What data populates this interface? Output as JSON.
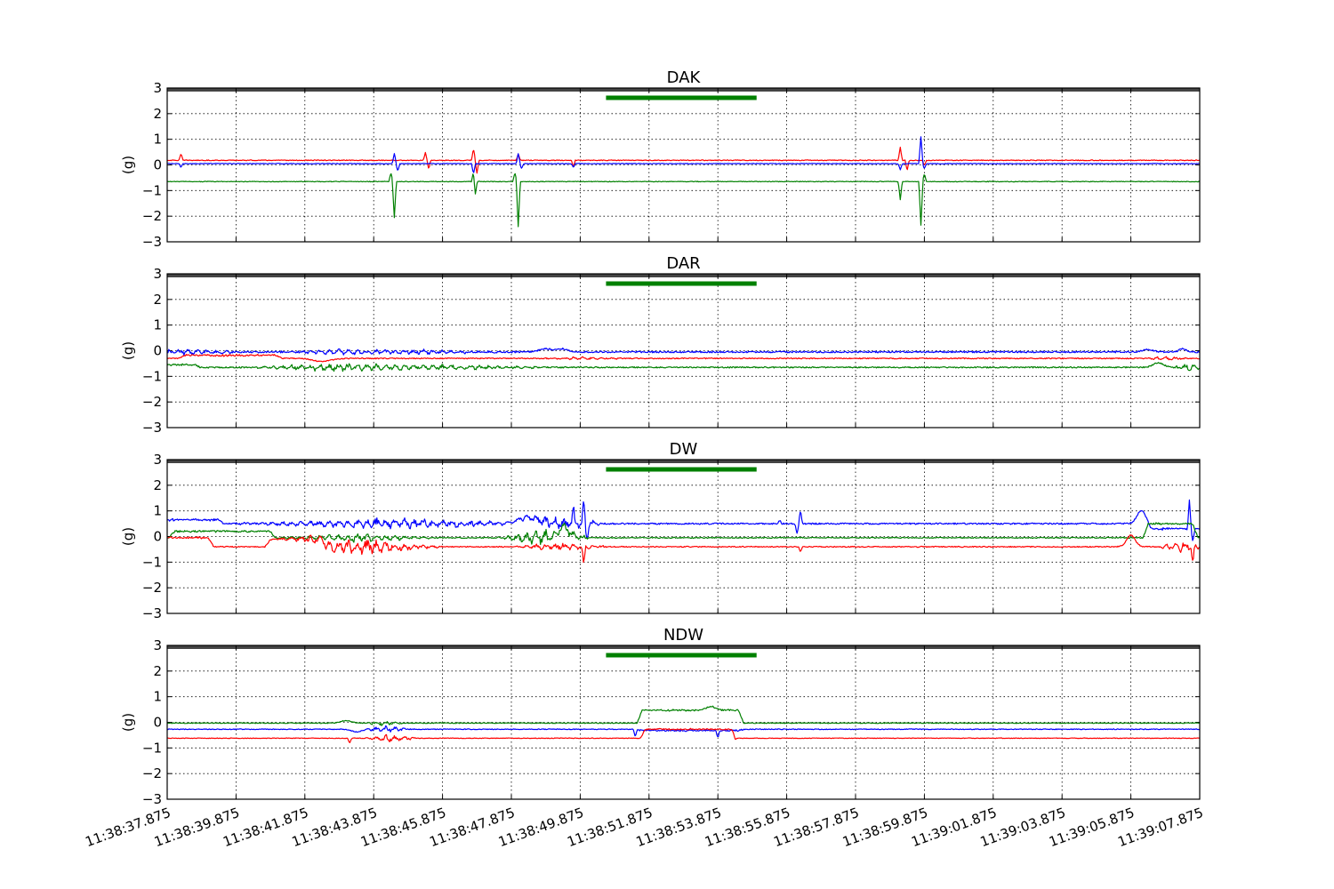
{
  "colors": {
    "blue": "#0000ff",
    "red": "#ff0000",
    "green": "#008000",
    "top_band": "#444444",
    "event_bar": "#008000"
  },
  "chart_data": [
    {
      "type": "line",
      "title": "DAK",
      "ylabel": "(g)",
      "ylim": [
        -3,
        3
      ],
      "yticks": [
        "3",
        "2",
        "1",
        "0",
        "−1",
        "−2",
        "−3"
      ],
      "xlim_seconds": [
        0,
        30
      ],
      "x_tick_labels": [
        "11:38:37.875",
        "11:38:39.875",
        "11:38:41.875",
        "11:38:43.875",
        "11:38:45.875",
        "11:38:47.875",
        "11:38:49.875",
        "11:38:51.875",
        "11:38:53.875",
        "11:38:55.875",
        "11:38:57.875",
        "11:38:59.875",
        "11:39:01.875",
        "11:39:03.875",
        "11:39:05.875",
        "11:39:07.875"
      ],
      "grid": true,
      "event_bar": {
        "start": "11:38:50.625",
        "end": "11:38:55.000"
      },
      "series": [
        {
          "color": "red",
          "baseline": 0.18,
          "noise": 0.015,
          "features": [
            {
              "t": 0.4,
              "type": "spike",
              "amp": 0.25
            },
            {
              "t": 7.5,
              "type": "spike",
              "amp": 0.3
            },
            {
              "t": 7.6,
              "type": "spike",
              "amp": -0.35
            },
            {
              "t": 8.9,
              "type": "spike",
              "amp": 0.45
            },
            {
              "t": 9.0,
              "type": "spike",
              "amp": -0.5
            },
            {
              "t": 10.2,
              "type": "spike",
              "amp": 0.25
            },
            {
              "t": 11.8,
              "type": "spike",
              "amp": -0.25
            },
            {
              "t": 21.3,
              "type": "spike",
              "amp": 0.5
            },
            {
              "t": 21.5,
              "type": "spike",
              "amp": -0.4
            },
            {
              "t": 22.0,
              "type": "spike",
              "amp": -0.2
            }
          ]
        },
        {
          "color": "blue",
          "baseline": 0.05,
          "noise": 0.012,
          "features": [
            {
              "t": 0.4,
              "type": "spike",
              "amp": -0.15
            },
            {
              "t": 6.6,
              "type": "spike",
              "amp": 0.4
            },
            {
              "t": 6.7,
              "type": "spike",
              "amp": -0.3
            },
            {
              "t": 8.9,
              "type": "spike",
              "amp": -0.4
            },
            {
              "t": 10.2,
              "type": "spike",
              "amp": 0.4
            },
            {
              "t": 10.3,
              "type": "spike",
              "amp": -0.2
            },
            {
              "t": 11.8,
              "type": "spike",
              "amp": -0.15
            },
            {
              "t": 21.3,
              "type": "spike",
              "amp": -0.25
            },
            {
              "t": 21.9,
              "type": "spike",
              "amp": 1.05
            },
            {
              "t": 22.0,
              "type": "spike",
              "amp": -0.2
            }
          ]
        },
        {
          "color": "green",
          "baseline": -0.65,
          "noise": 0.012,
          "features": [
            {
              "t": 6.5,
              "type": "spike",
              "amp": 0.35
            },
            {
              "t": 6.6,
              "type": "spike",
              "amp": -1.4
            },
            {
              "t": 8.9,
              "type": "spike",
              "amp": 0.4
            },
            {
              "t": 8.95,
              "type": "spike",
              "amp": -0.55
            },
            {
              "t": 10.1,
              "type": "spike",
              "amp": 0.35
            },
            {
              "t": 10.2,
              "type": "spike",
              "amp": -1.75
            },
            {
              "t": 21.3,
              "type": "spike",
              "amp": -0.7
            },
            {
              "t": 21.9,
              "type": "spike",
              "amp": -1.7
            },
            {
              "t": 22.0,
              "type": "spike",
              "amp": 0.3
            }
          ]
        }
      ]
    },
    {
      "type": "line",
      "title": "DAR",
      "ylabel": "(g)",
      "ylim": [
        -3,
        3
      ],
      "yticks": [
        "3",
        "2",
        "1",
        "0",
        "−1",
        "−2",
        "−3"
      ],
      "xlim_seconds": [
        0,
        30
      ],
      "x_tick_labels": [
        "11:38:37.875",
        "11:38:39.875",
        "11:38:41.875",
        "11:38:43.875",
        "11:38:45.875",
        "11:38:47.875",
        "11:38:49.875",
        "11:38:51.875",
        "11:38:53.875",
        "11:38:55.875",
        "11:38:57.875",
        "11:38:59.875",
        "11:39:01.875",
        "11:39:03.875",
        "11:39:05.875",
        "11:39:07.875"
      ],
      "grid": true,
      "event_bar": {
        "start": "11:38:50.625",
        "end": "11:38:55.000"
      },
      "series": [
        {
          "color": "blue",
          "baseline": -0.05,
          "noise": 0.03,
          "features": [
            {
              "t": 0.5,
              "type": "wiggle",
              "amp": 0.1,
              "width": 2.5
            },
            {
              "t": 5.0,
              "type": "wiggle",
              "amp": 0.1,
              "width": 2.0
            },
            {
              "t": 7.5,
              "type": "wiggle",
              "amp": 0.08,
              "width": 3.0
            },
            {
              "t": 11.0,
              "type": "bump",
              "amp": 0.12,
              "width": 0.4
            },
            {
              "t": 11.5,
              "type": "bump",
              "amp": 0.12,
              "width": 0.3
            },
            {
              "t": 28.5,
              "type": "bump",
              "amp": 0.1,
              "width": 0.3
            },
            {
              "t": 29.5,
              "type": "bump",
              "amp": 0.12,
              "width": 0.2
            }
          ]
        },
        {
          "color": "red",
          "baseline": -0.3,
          "noise": 0.02,
          "features": [
            {
              "t": 1.5,
              "type": "plateau",
              "amp": 0.12,
              "start": 0.5,
              "end": 3.2
            },
            {
              "t": 4.5,
              "type": "bump",
              "amp": -0.12,
              "width": 0.5
            },
            {
              "t": 12.0,
              "type": "wiggle",
              "amp": 0.05,
              "width": 1.5
            },
            {
              "t": 29.0,
              "type": "wiggle",
              "amp": 0.06,
              "width": 1.0
            }
          ]
        },
        {
          "color": "green",
          "baseline": -0.65,
          "noise": 0.025,
          "features": [
            {
              "t": 0.4,
              "type": "plateau",
              "amp": 0.1,
              "start": 0,
              "end": 0.8
            },
            {
              "t": 4.8,
              "type": "wiggle",
              "amp": 0.15,
              "width": 2.5
            },
            {
              "t": 8.0,
              "type": "wiggle",
              "amp": 0.1,
              "width": 3.5
            },
            {
              "t": 28.8,
              "type": "bump",
              "amp": 0.18,
              "width": 0.3
            },
            {
              "t": 29.7,
              "type": "wiggle",
              "amp": 0.12,
              "width": 0.6
            }
          ]
        }
      ]
    },
    {
      "type": "line",
      "title": "DW",
      "ylabel": "(g)",
      "ylim": [
        -3,
        3
      ],
      "yticks": [
        "3",
        "2",
        "1",
        "0",
        "−1",
        "−2",
        "−3"
      ],
      "xlim_seconds": [
        0,
        30
      ],
      "x_tick_labels": [
        "11:38:37.875",
        "11:38:39.875",
        "11:38:41.875",
        "11:38:43.875",
        "11:38:45.875",
        "11:38:47.875",
        "11:38:49.875",
        "11:38:51.875",
        "11:38:53.875",
        "11:38:55.875",
        "11:38:57.875",
        "11:38:59.875",
        "11:39:01.875",
        "11:39:03.875",
        "11:39:05.875",
        "11:39:07.875"
      ],
      "grid": true,
      "event_bar": {
        "start": "11:38:50.625",
        "end": "11:38:55.000"
      },
      "series": [
        {
          "color": "blue",
          "baseline": 0.5,
          "noise": 0.03,
          "features": [
            {
              "t": 1.0,
              "type": "plateau",
              "amp": 0.15,
              "start": 0,
              "end": 1.5
            },
            {
              "t": 6.5,
              "type": "wiggle",
              "amp": 0.2,
              "width": 5.0
            },
            {
              "t": 10.5,
              "type": "bump",
              "amp": 0.25,
              "width": 0.6
            },
            {
              "t": 11.5,
              "type": "wiggle",
              "amp": 0.25,
              "width": 1.5
            },
            {
              "t": 12.1,
              "type": "spike",
              "amp": 0.9
            },
            {
              "t": 12.2,
              "type": "spike",
              "amp": -0.6
            },
            {
              "t": 11.8,
              "type": "spike",
              "amp": 0.6
            },
            {
              "t": 17.8,
              "type": "spike",
              "amp": 0.15
            },
            {
              "t": 18.3,
              "type": "spike",
              "amp": -0.4
            },
            {
              "t": 18.4,
              "type": "spike",
              "amp": 0.5
            },
            {
              "t": 28.3,
              "type": "bump",
              "amp": 0.5,
              "width": 0.25
            },
            {
              "t": 28.7,
              "type": "plateau",
              "amp": -0.2,
              "start": 28.6,
              "end": 30
            },
            {
              "t": 29.7,
              "type": "spike",
              "amp": 1.1
            },
            {
              "t": 29.8,
              "type": "spike",
              "amp": -0.5
            }
          ]
        },
        {
          "color": "green",
          "baseline": -0.05,
          "noise": 0.02,
          "features": [
            {
              "t": 1.5,
              "type": "plateau",
              "amp": 0.25,
              "start": 0.2,
              "end": 3.0
            },
            {
              "t": 5.5,
              "type": "wiggle",
              "amp": 0.15,
              "width": 2.5
            },
            {
              "t": 11.0,
              "type": "wiggle",
              "amp": 0.3,
              "width": 1.5
            },
            {
              "t": 11.5,
              "type": "bump",
              "amp": 0.35,
              "width": 0.4
            },
            {
              "t": 29.0,
              "type": "plateau",
              "amp": 0.55,
              "start": 28.5,
              "end": 29.8
            }
          ]
        },
        {
          "color": "red",
          "baseline": -0.4,
          "noise": 0.02,
          "features": [
            {
              "t": 1.0,
              "type": "plateau",
              "amp": 0.35,
              "start": 0,
              "end": 1.2
            },
            {
              "t": 4.0,
              "type": "plateau",
              "amp": 0.3,
              "start": 3.0,
              "end": 4.5
            },
            {
              "t": 5.6,
              "type": "wiggle",
              "amp": 0.3,
              "width": 2.5
            },
            {
              "t": 11.5,
              "type": "wiggle",
              "amp": 0.15,
              "width": 1.5
            },
            {
              "t": 12.1,
              "type": "spike",
              "amp": -0.7
            },
            {
              "t": 18.4,
              "type": "spike",
              "amp": -0.2
            },
            {
              "t": 28.0,
              "type": "bump",
              "amp": 0.45,
              "width": 0.25
            },
            {
              "t": 29.5,
              "type": "wiggle",
              "amp": 0.2,
              "width": 0.8
            },
            {
              "t": 29.8,
              "type": "spike",
              "amp": -0.6
            }
          ]
        }
      ]
    },
    {
      "type": "line",
      "title": "NDW",
      "ylabel": "(g)",
      "ylim": [
        -3,
        3
      ],
      "yticks": [
        "3",
        "2",
        "1",
        "0",
        "−1",
        "−2",
        "−3"
      ],
      "xlim_seconds": [
        0,
        30
      ],
      "x_tick_labels": [
        "11:38:37.875",
        "11:38:39.875",
        "11:38:41.875",
        "11:38:43.875",
        "11:38:45.875",
        "11:38:47.875",
        "11:38:49.875",
        "11:38:51.875",
        "11:38:53.875",
        "11:38:55.875",
        "11:38:57.875",
        "11:38:59.875",
        "11:39:01.875",
        "11:39:03.875",
        "11:39:05.875",
        "11:39:07.875"
      ],
      "grid": true,
      "event_bar": {
        "start": "11:38:50.625",
        "end": "11:38:55.000"
      },
      "series": [
        {
          "color": "green",
          "baseline": -0.03,
          "noise": 0.015,
          "features": [
            {
              "t": 5.2,
              "type": "bump",
              "amp": 0.1,
              "width": 0.3
            },
            {
              "t": 6.3,
              "type": "wiggle",
              "amp": 0.1,
              "width": 0.6
            },
            {
              "t": 15.2,
              "type": "plateau",
              "amp": 0.5,
              "start": 13.8,
              "end": 16.6
            },
            {
              "t": 15.8,
              "type": "bump",
              "amp": 0.15,
              "width": 0.3
            }
          ]
        },
        {
          "color": "blue",
          "baseline": -0.27,
          "noise": 0.015,
          "features": [
            {
              "t": 5.5,
              "type": "bump",
              "amp": -0.1,
              "width": 0.3
            },
            {
              "t": 6.4,
              "type": "wiggle",
              "amp": 0.12,
              "width": 0.8
            },
            {
              "t": 15.0,
              "type": "plateau",
              "amp": -0.05,
              "start": 13.8,
              "end": 16.6
            },
            {
              "t": 13.6,
              "type": "spike",
              "amp": -0.3
            },
            {
              "t": 16.0,
              "type": "spike",
              "amp": -0.3
            }
          ]
        },
        {
          "color": "red",
          "baseline": -0.62,
          "noise": 0.012,
          "features": [
            {
              "t": 5.3,
              "type": "spike",
              "amp": -0.2
            },
            {
              "t": 6.5,
              "type": "wiggle",
              "amp": 0.15,
              "width": 0.8
            },
            {
              "t": 15.0,
              "type": "plateau",
              "amp": 0.35,
              "start": 13.9,
              "end": 16.4
            },
            {
              "t": 16.5,
              "type": "spike",
              "amp": -0.15
            }
          ]
        }
      ]
    }
  ]
}
